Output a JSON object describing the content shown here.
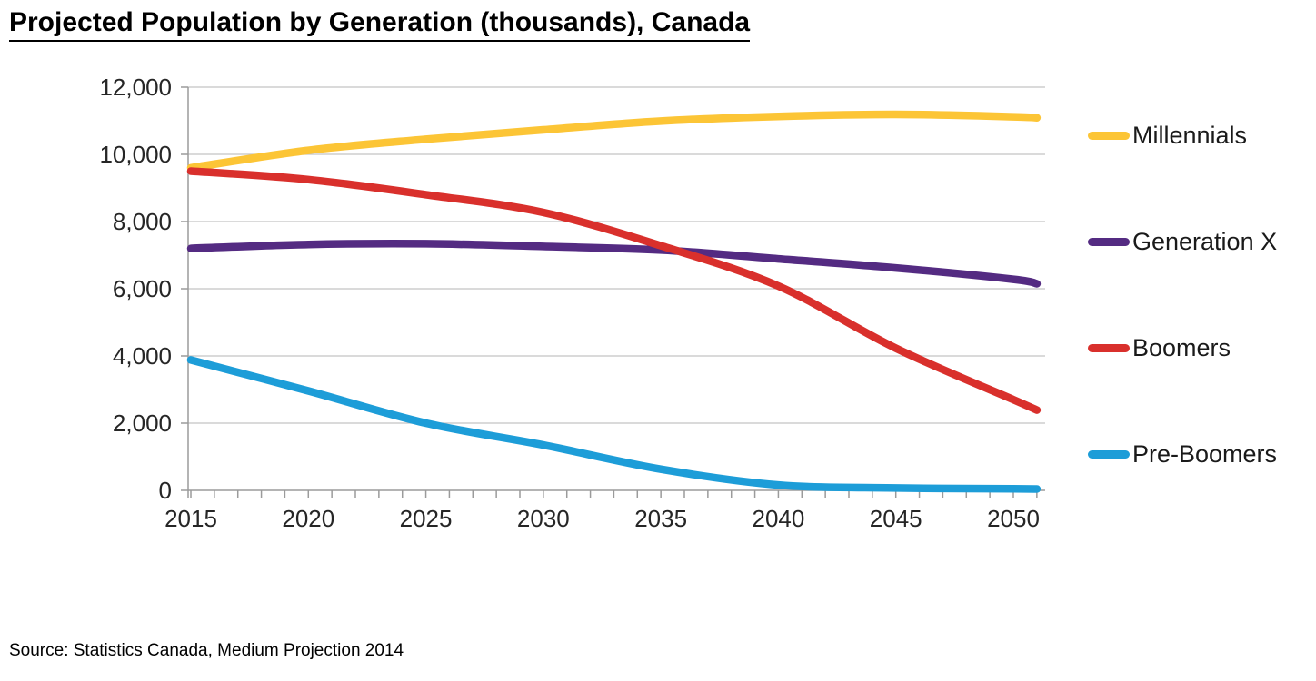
{
  "title": "Projected Population by Generation (thousands), Canada",
  "source": "Source: Statistics Canada, Medium Projection 2014",
  "colors": {
    "gridline": "#c3c3c3",
    "axis": "#9b9b9b",
    "tick": "#9b9b9b",
    "text": "#262626"
  },
  "chart_data": {
    "type": "line",
    "title": "Projected Population by Generation (thousands), Canada",
    "xlabel": "",
    "ylabel": "",
    "grid": true,
    "legend_position": "right",
    "xlim": [
      2015,
      2051
    ],
    "ylim": [
      0,
      12000
    ],
    "x": [
      2015,
      2020,
      2025,
      2030,
      2035,
      2040,
      2045,
      2050,
      2051
    ],
    "series": [
      {
        "name": "Millennials",
        "color": "#fcc536",
        "values": [
          9600,
          10120,
          10450,
          10730,
          10990,
          11130,
          11190,
          11120,
          11090
        ]
      },
      {
        "name": "Generation X",
        "color": "#542b82",
        "values": [
          7200,
          7320,
          7340,
          7260,
          7150,
          6890,
          6620,
          6280,
          6150
        ]
      },
      {
        "name": "Boomers",
        "color": "#d9302c",
        "values": [
          9500,
          9250,
          8800,
          8270,
          7280,
          6080,
          4230,
          2700,
          2390
        ]
      },
      {
        "name": "Pre-Boomers",
        "color": "#1d9dd8",
        "values": [
          3880,
          2960,
          2000,
          1350,
          630,
          160,
          70,
          45,
          40
        ]
      }
    ],
    "y_ticks": [
      0,
      2000,
      4000,
      6000,
      8000,
      10000,
      12000
    ],
    "y_tick_labels": [
      "0",
      "2,000",
      "4,000",
      "6,000",
      "8,000",
      "10,000",
      "12,000"
    ],
    "x_tick_years": [
      2015,
      2020,
      2025,
      2030,
      2035,
      2040,
      2045,
      2050
    ],
    "x_tick_labels": [
      "2015",
      "2020",
      "2025",
      "2030",
      "2035",
      "2040",
      "2045",
      "2050"
    ],
    "minor_x_tick_interval_years": 1
  },
  "layout_note": ""
}
